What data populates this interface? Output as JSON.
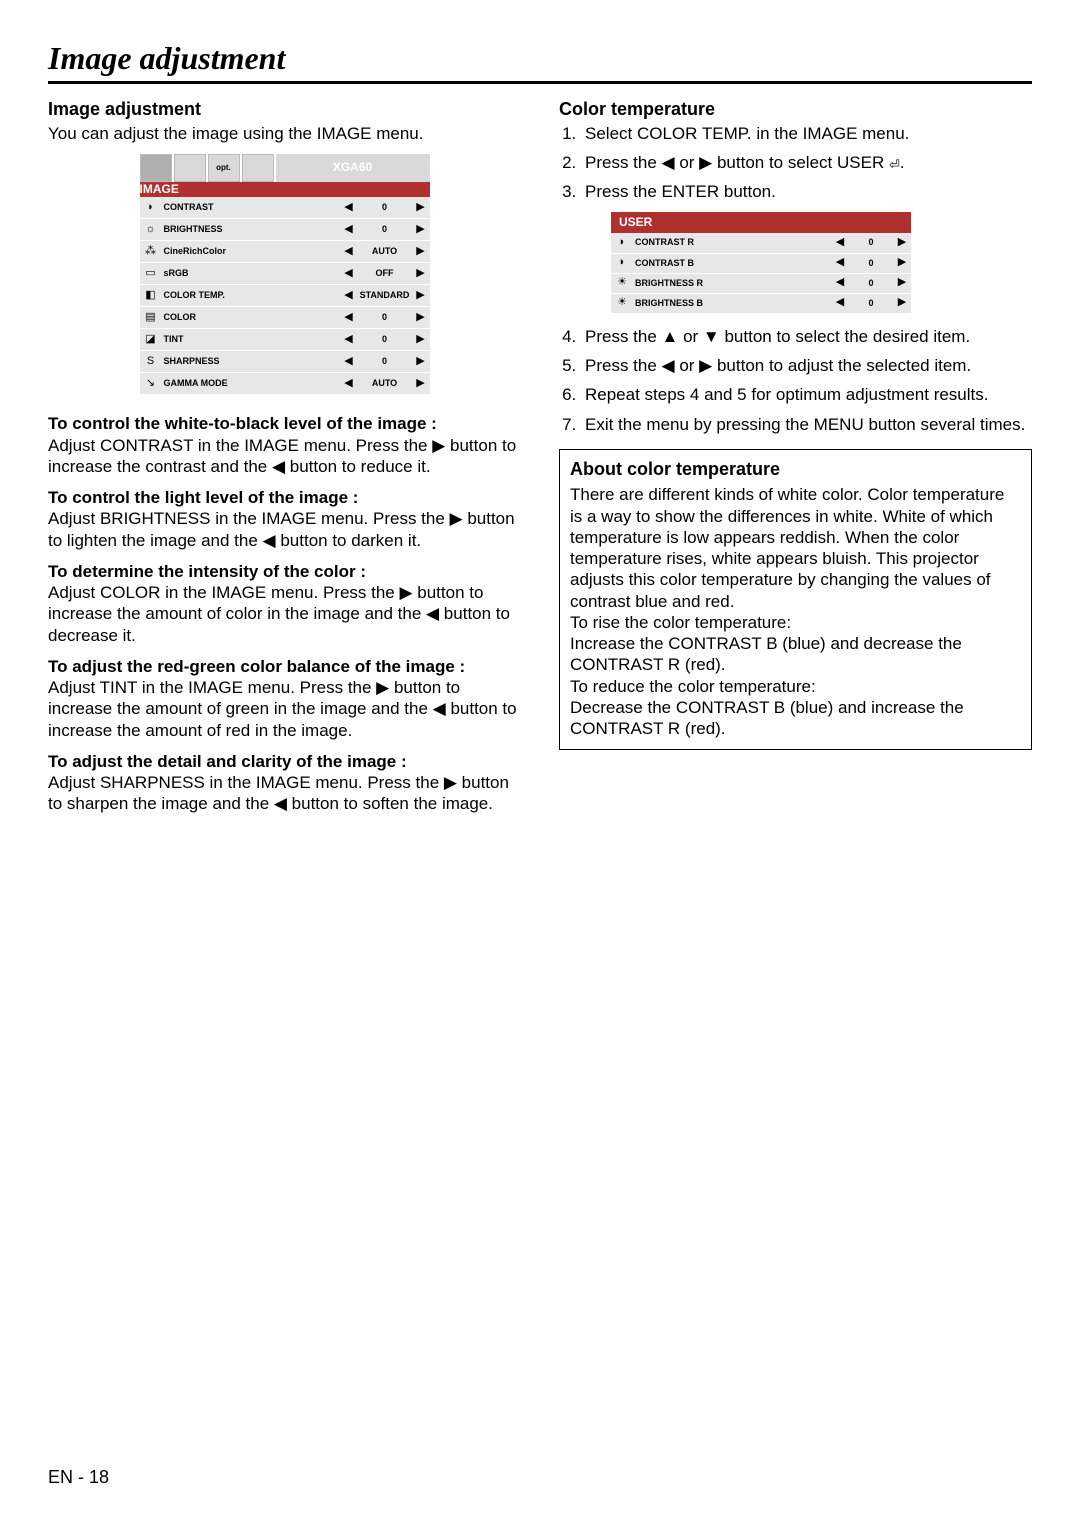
{
  "page": {
    "title": "Image adjustment",
    "pageNumber": "EN - 18"
  },
  "left": {
    "heading": "Image adjustment",
    "intro": "You can adjust the image using the IMAGE menu.",
    "menu": {
      "tabLabel": "XGA60",
      "header": "IMAGE",
      "optLabel": "opt.",
      "rows": [
        {
          "icon": "◗",
          "label": "CONTRAST",
          "value": "0"
        },
        {
          "icon": "☼",
          "label": "BRIGHTNESS",
          "value": "0"
        },
        {
          "icon": "⁂",
          "label": "CineRichColor",
          "value": "AUTO"
        },
        {
          "icon": "▭",
          "label": "sRGB",
          "value": "OFF"
        },
        {
          "icon": "◧",
          "label": "COLOR TEMP.",
          "value": "STANDARD"
        },
        {
          "icon": "▤",
          "label": "COLOR",
          "value": "0"
        },
        {
          "icon": "◪",
          "label": "TINT",
          "value": "0"
        },
        {
          "icon": "S",
          "label": "SHARPNESS",
          "value": "0"
        },
        {
          "icon": "↘",
          "label": "GAMMA MODE",
          "value": "AUTO"
        }
      ]
    },
    "paras": [
      {
        "heading": "To control the white-to-black level of the image :",
        "text": "Adjust CONTRAST in the IMAGE menu.  Press the ▶ button to increase the contrast and the ◀ button to reduce it."
      },
      {
        "heading": "To control the light level of the image :",
        "text": "Adjust BRIGHTNESS in the IMAGE menu.  Press the ▶ button to lighten the image and the ◀ button to darken it."
      },
      {
        "heading": "To determine the intensity of the color :",
        "text": "Adjust COLOR in the IMAGE menu.  Press the ▶ button to increase the amount of color in the image and the ◀ button to decrease it."
      },
      {
        "heading": "To adjust the red-green color balance of the image :",
        "text": "Adjust TINT in the IMAGE menu.  Press the ▶ button to increase the amount of green in the image and the ◀ button to increase the amount of red in the image."
      },
      {
        "heading": "To adjust the detail and clarity of the image :",
        "text": "Adjust SHARPNESS in the IMAGE menu.  Press the ▶ button to sharpen the image and the ◀ button to soften the image."
      }
    ]
  },
  "right": {
    "heading": "Color temperature",
    "steps1_html": [
      "Select COLOR TEMP. in the IMAGE menu.",
      "Press the ◀ or ▶ button to select USER <span class='enter-icon'>⏎</span>.",
      "Press the ENTER button."
    ],
    "userMenu": {
      "header": "USER",
      "rows": [
        {
          "icon": "◗",
          "label": "CONTRAST R",
          "value": "0"
        },
        {
          "icon": "◗",
          "label": "CONTRAST B",
          "value": "0"
        },
        {
          "icon": "☀",
          "label": "BRIGHTNESS R",
          "value": "0"
        },
        {
          "icon": "☀",
          "label": "BRIGHTNESS B",
          "value": "0"
        }
      ]
    },
    "steps2_html": [
      "Press the ▲ or ▼ button to select the desired item.",
      "Press the ◀ or ▶ button to adjust the selected item.",
      "Repeat steps 4 and 5 for optimum adjustment results.",
      "Exit the menu by pressing the MENU button several times."
    ],
    "box": {
      "heading": "About color temperature",
      "body": "There are different kinds of white color. Color temperature is a way to show the differences in white. White of which temperature is low appears reddish. When the color temperature rises, white appears bluish. This projector adjusts this color temperature by changing the values of contrast blue and red.\nTo rise the color temperature:\nIncrease the CONTRAST B (blue) and decrease the CONTRAST R (red).\nTo reduce the color temperature:\nDecrease the CONTRAST B (blue) and increase the CONTRAST R (red)."
    }
  },
  "glyphs": {
    "left": "◀",
    "right": "▶"
  }
}
